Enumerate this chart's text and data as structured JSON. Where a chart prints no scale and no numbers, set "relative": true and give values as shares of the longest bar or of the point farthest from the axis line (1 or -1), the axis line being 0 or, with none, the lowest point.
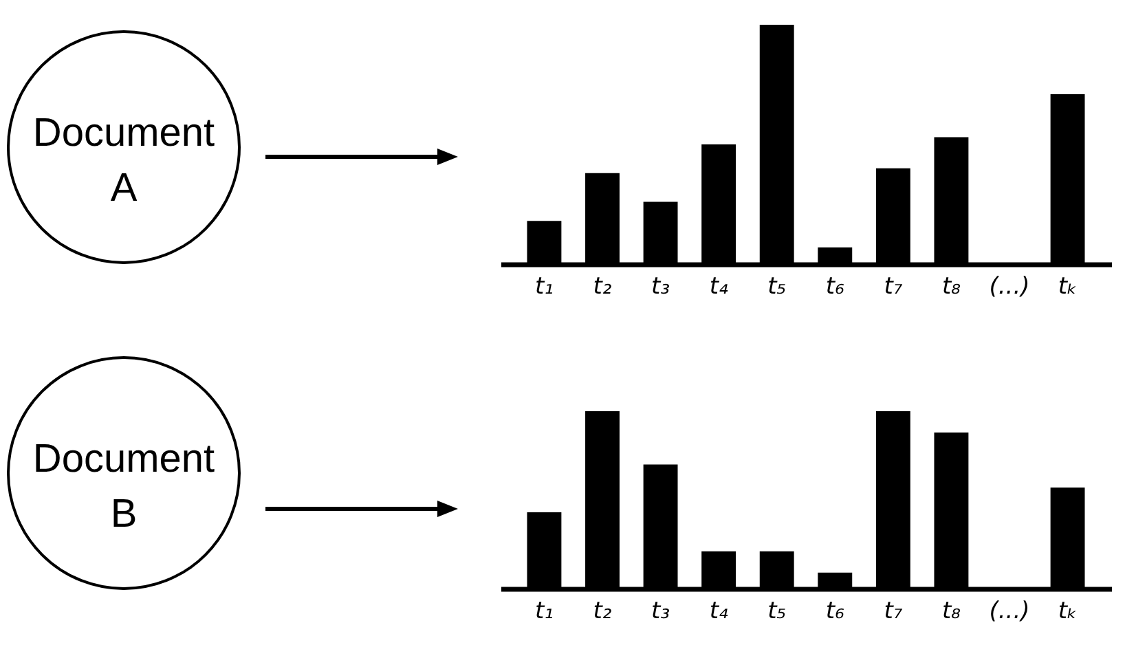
{
  "chart_data": [
    {
      "type": "bar",
      "annotations": [
        "Document A"
      ],
      "categories": [
        "t₁",
        "t₂",
        "t₃",
        "t₄",
        "t₅",
        "t₆",
        "t₇",
        "t₈",
        "(...)",
        "tₖ"
      ],
      "values": [
        0.18,
        0.38,
        0.26,
        0.5,
        1,
        0.07,
        0.4,
        0.53,
        null,
        0.71
      ],
      "color": "#000000",
      "relative": true
    },
    {
      "type": "bar",
      "annotations": [
        "Document B"
      ],
      "categories": [
        "t₁",
        "t₂",
        "t₃",
        "t₄",
        "t₅",
        "t₆",
        "t₇",
        "t₈",
        "(...)",
        "tₖ"
      ],
      "values": [
        0.43,
        1,
        0.7,
        0.21,
        0.21,
        0.09,
        1,
        0.88,
        null,
        0.57
      ],
      "color": "#000000",
      "relative": true
    }
  ]
}
